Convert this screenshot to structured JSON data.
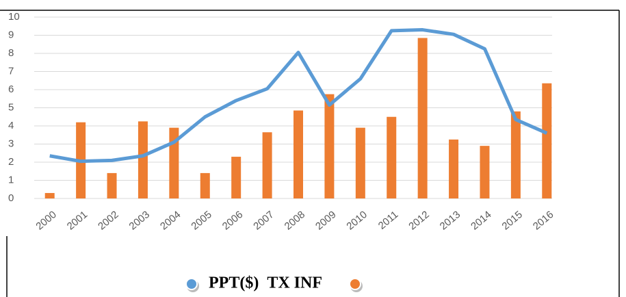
{
  "chart_data": {
    "type": "bar-line",
    "categories": [
      "2000",
      "2001",
      "2002",
      "2003",
      "2004",
      "2005",
      "2006",
      "2007",
      "2008",
      "2009",
      "2010",
      "2011",
      "2012",
      "2013",
      "2014",
      "2015",
      "2016"
    ],
    "series": [
      {
        "name": "PPT($)",
        "color": "#5b9bd5",
        "kind": "line",
        "values": [
          2.35,
          2.05,
          2.1,
          2.35,
          3.1,
          4.5,
          5.4,
          6.05,
          8.05,
          5.15,
          6.6,
          9.25,
          9.3,
          9.05,
          8.25,
          4.35,
          3.6
        ]
      },
      {
        "name": "TX INF",
        "color": "#ed7d31",
        "kind": "bar",
        "values": [
          0.3,
          4.2,
          1.4,
          4.25,
          3.9,
          1.4,
          2.3,
          3.65,
          4.85,
          5.75,
          3.9,
          4.5,
          8.85,
          3.25,
          2.9,
          4.8,
          6.35
        ]
      }
    ],
    "ylim": [
      0,
      10
    ],
    "yticks": [
      0,
      1,
      2,
      3,
      4,
      5,
      6,
      7,
      8,
      9,
      10
    ],
    "grid": true
  }
}
